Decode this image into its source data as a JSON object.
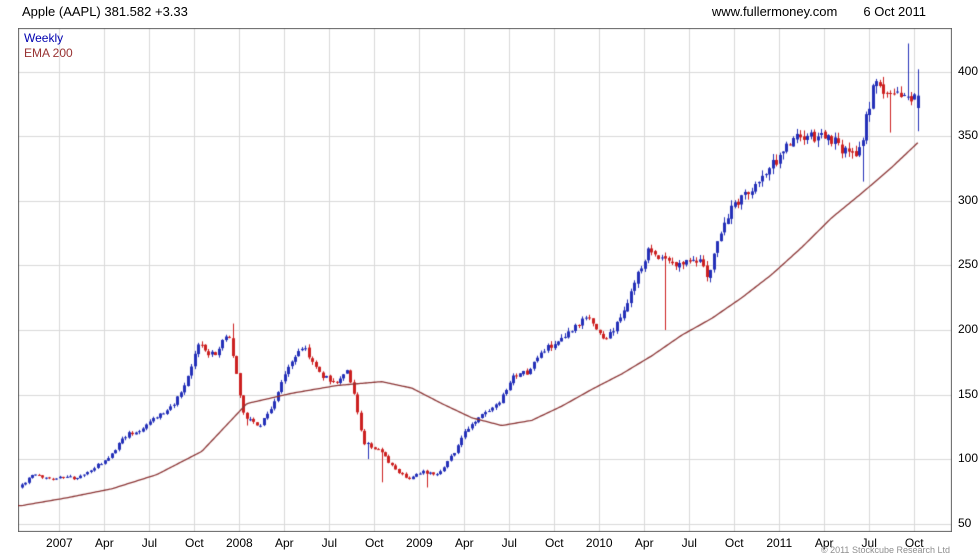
{
  "header": {
    "title": "Apple (AAPL) 381.582 +3.33",
    "website": "www.fullermoney.com",
    "date": "6 Oct 2011"
  },
  "legend": {
    "series": "Weekly",
    "ema": "EMA 200"
  },
  "footer": {
    "copyright": "© 2011 Stockcube Research Ltd"
  },
  "chart_data": {
    "type": "candlestick",
    "title": "Apple (AAPL) 381.582 +3.33",
    "xlabel": "",
    "ylabel": "",
    "x_domain": [
      2006.77,
      2011.96
    ],
    "data_start": 2006.79,
    "data_end": 2011.77,
    "ylim": [
      43.5,
      434
    ],
    "y_ticks": [
      400,
      350,
      300,
      250,
      200,
      150,
      100,
      50
    ],
    "x_ticks": [
      {
        "t": 2007.0,
        "label": "2007"
      },
      {
        "t": 2007.25,
        "label": "Apr"
      },
      {
        "t": 2007.5,
        "label": "Jul"
      },
      {
        "t": 2007.75,
        "label": "Oct"
      },
      {
        "t": 2008.0,
        "label": "2008"
      },
      {
        "t": 2008.25,
        "label": "Apr"
      },
      {
        "t": 2008.5,
        "label": "Jul"
      },
      {
        "t": 2008.75,
        "label": "Oct"
      },
      {
        "t": 2009.0,
        "label": "2009"
      },
      {
        "t": 2009.25,
        "label": "Apr"
      },
      {
        "t": 2009.5,
        "label": "Jul"
      },
      {
        "t": 2009.75,
        "label": "Oct"
      },
      {
        "t": 2010.0,
        "label": "2010"
      },
      {
        "t": 2010.25,
        "label": "Apr"
      },
      {
        "t": 2010.5,
        "label": "Jul"
      },
      {
        "t": 2010.75,
        "label": "Oct"
      },
      {
        "t": 2011.0,
        "label": "2011"
      },
      {
        "t": 2011.25,
        "label": "Apr"
      },
      {
        "t": 2011.5,
        "label": "Jul"
      },
      {
        "t": 2011.75,
        "label": "Oct"
      }
    ],
    "price_monthly": [
      {
        "t": "2006-10",
        "c": 78
      },
      {
        "t": "2006-11",
        "c": 88
      },
      {
        "t": "2006-12",
        "c": 85
      },
      {
        "t": "2007-01",
        "c": 86
      },
      {
        "t": "2007-02",
        "c": 85
      },
      {
        "t": "2007-03",
        "c": 93
      },
      {
        "t": "2007-04",
        "c": 100
      },
      {
        "t": "2007-05",
        "c": 118
      },
      {
        "t": "2007-06",
        "c": 122
      },
      {
        "t": "2007-07",
        "c": 132
      },
      {
        "t": "2007-08",
        "c": 138
      },
      {
        "t": "2007-09",
        "c": 153
      },
      {
        "t": "2007-10",
        "c": 189
      },
      {
        "t": "2007-11",
        "c": 180
      },
      {
        "t": "2007-12",
        "c": 198
      },
      {
        "t": "2008-01",
        "c": 135
      },
      {
        "t": "2008-02",
        "c": 125
      },
      {
        "t": "2008-03",
        "c": 143
      },
      {
        "t": "2008-04",
        "c": 173
      },
      {
        "t": "2008-05",
        "c": 188
      },
      {
        "t": "2008-06",
        "c": 167
      },
      {
        "t": "2008-07",
        "c": 159
      },
      {
        "t": "2008-08",
        "c": 169
      },
      {
        "t": "2008-09",
        "c": 113
      },
      {
        "t": "2008-10",
        "c": 107
      },
      {
        "t": "2008-11",
        "c": 93
      },
      {
        "t": "2008-12",
        "c": 85
      },
      {
        "t": "2009-01",
        "c": 90
      },
      {
        "t": "2009-02",
        "c": 89
      },
      {
        "t": "2009-03",
        "c": 105
      },
      {
        "t": "2009-04",
        "c": 125
      },
      {
        "t": "2009-05",
        "c": 135
      },
      {
        "t": "2009-06",
        "c": 142
      },
      {
        "t": "2009-07",
        "c": 163
      },
      {
        "t": "2009-08",
        "c": 168
      },
      {
        "t": "2009-09",
        "c": 185
      },
      {
        "t": "2009-10",
        "c": 189
      },
      {
        "t": "2009-11",
        "c": 200
      },
      {
        "t": "2009-12",
        "c": 211
      },
      {
        "t": "2010-01",
        "c": 192
      },
      {
        "t": "2010-02",
        "c": 205
      },
      {
        "t": "2010-03",
        "c": 235
      },
      {
        "t": "2010-04",
        "c": 261
      },
      {
        "t": "2010-05",
        "c": 257
      },
      {
        "t": "2010-06",
        "c": 251
      },
      {
        "t": "2010-07",
        "c": 258
      },
      {
        "t": "2010-08",
        "c": 243
      },
      {
        "t": "2010-09",
        "c": 284
      },
      {
        "t": "2010-10",
        "c": 301
      },
      {
        "t": "2010-11",
        "c": 311
      },
      {
        "t": "2010-12",
        "c": 323
      },
      {
        "t": "2011-01",
        "c": 340
      },
      {
        "t": "2011-02",
        "c": 350
      },
      {
        "t": "2011-03",
        "c": 348
      },
      {
        "t": "2011-04",
        "c": 350
      },
      {
        "t": "2011-05",
        "c": 338
      },
      {
        "t": "2011-06",
        "c": 335
      },
      {
        "t": "2011-07",
        "c": 390
      },
      {
        "t": "2011-08",
        "c": 384
      },
      {
        "t": "2011-09",
        "c": 382
      },
      {
        "t": "2011-10",
        "c": 378
      }
    ],
    "ema200_monthly": [
      {
        "t": "2006-10",
        "v": 64
      },
      {
        "t": "2007-01",
        "v": 70
      },
      {
        "t": "2007-04",
        "v": 77
      },
      {
        "t": "2007-07",
        "v": 88
      },
      {
        "t": "2007-10",
        "v": 106
      },
      {
        "t": "2008-01",
        "v": 143
      },
      {
        "t": "2008-04",
        "v": 151
      },
      {
        "t": "2008-07",
        "v": 157
      },
      {
        "t": "2008-10",
        "v": 160
      },
      {
        "t": "2008-12",
        "v": 155
      },
      {
        "t": "2009-02",
        "v": 143
      },
      {
        "t": "2009-04",
        "v": 132
      },
      {
        "t": "2009-06",
        "v": 126
      },
      {
        "t": "2009-08",
        "v": 130
      },
      {
        "t": "2009-10",
        "v": 141
      },
      {
        "t": "2009-12",
        "v": 154
      },
      {
        "t": "2010-02",
        "v": 166
      },
      {
        "t": "2010-04",
        "v": 180
      },
      {
        "t": "2010-06",
        "v": 196
      },
      {
        "t": "2010-08",
        "v": 209
      },
      {
        "t": "2010-10",
        "v": 225
      },
      {
        "t": "2010-12",
        "v": 243
      },
      {
        "t": "2011-02",
        "v": 264
      },
      {
        "t": "2011-04",
        "v": 287
      },
      {
        "t": "2011-06",
        "v": 306
      },
      {
        "t": "2011-08",
        "v": 326
      },
      {
        "t": "2011-10",
        "v": 348
      }
    ],
    "extremes": [
      {
        "t": "2007-12",
        "high": 205
      },
      {
        "t": "2008-01",
        "low": 126
      },
      {
        "t": "2008-09",
        "low": 100
      },
      {
        "t": "2008-10",
        "low": 82
      },
      {
        "t": "2009-01",
        "low": 78
      },
      {
        "t": "2010-05",
        "low": 200
      },
      {
        "t": "2011-06",
        "low": 315
      },
      {
        "t": "2011-08",
        "low": 353
      },
      {
        "t": "2011-09",
        "high": 422
      }
    ],
    "last_candle": {
      "open": 372,
      "high": 402,
      "low": 354,
      "close": 381.58
    },
    "colors": {
      "up": "#2430b8",
      "down": "#cc2020",
      "ema": "#8b3535",
      "grid": "#d9d9d9",
      "border": "#606060",
      "legend_weekly": "#0000b0",
      "legend_ema": "#993333",
      "text": "#000000"
    }
  }
}
